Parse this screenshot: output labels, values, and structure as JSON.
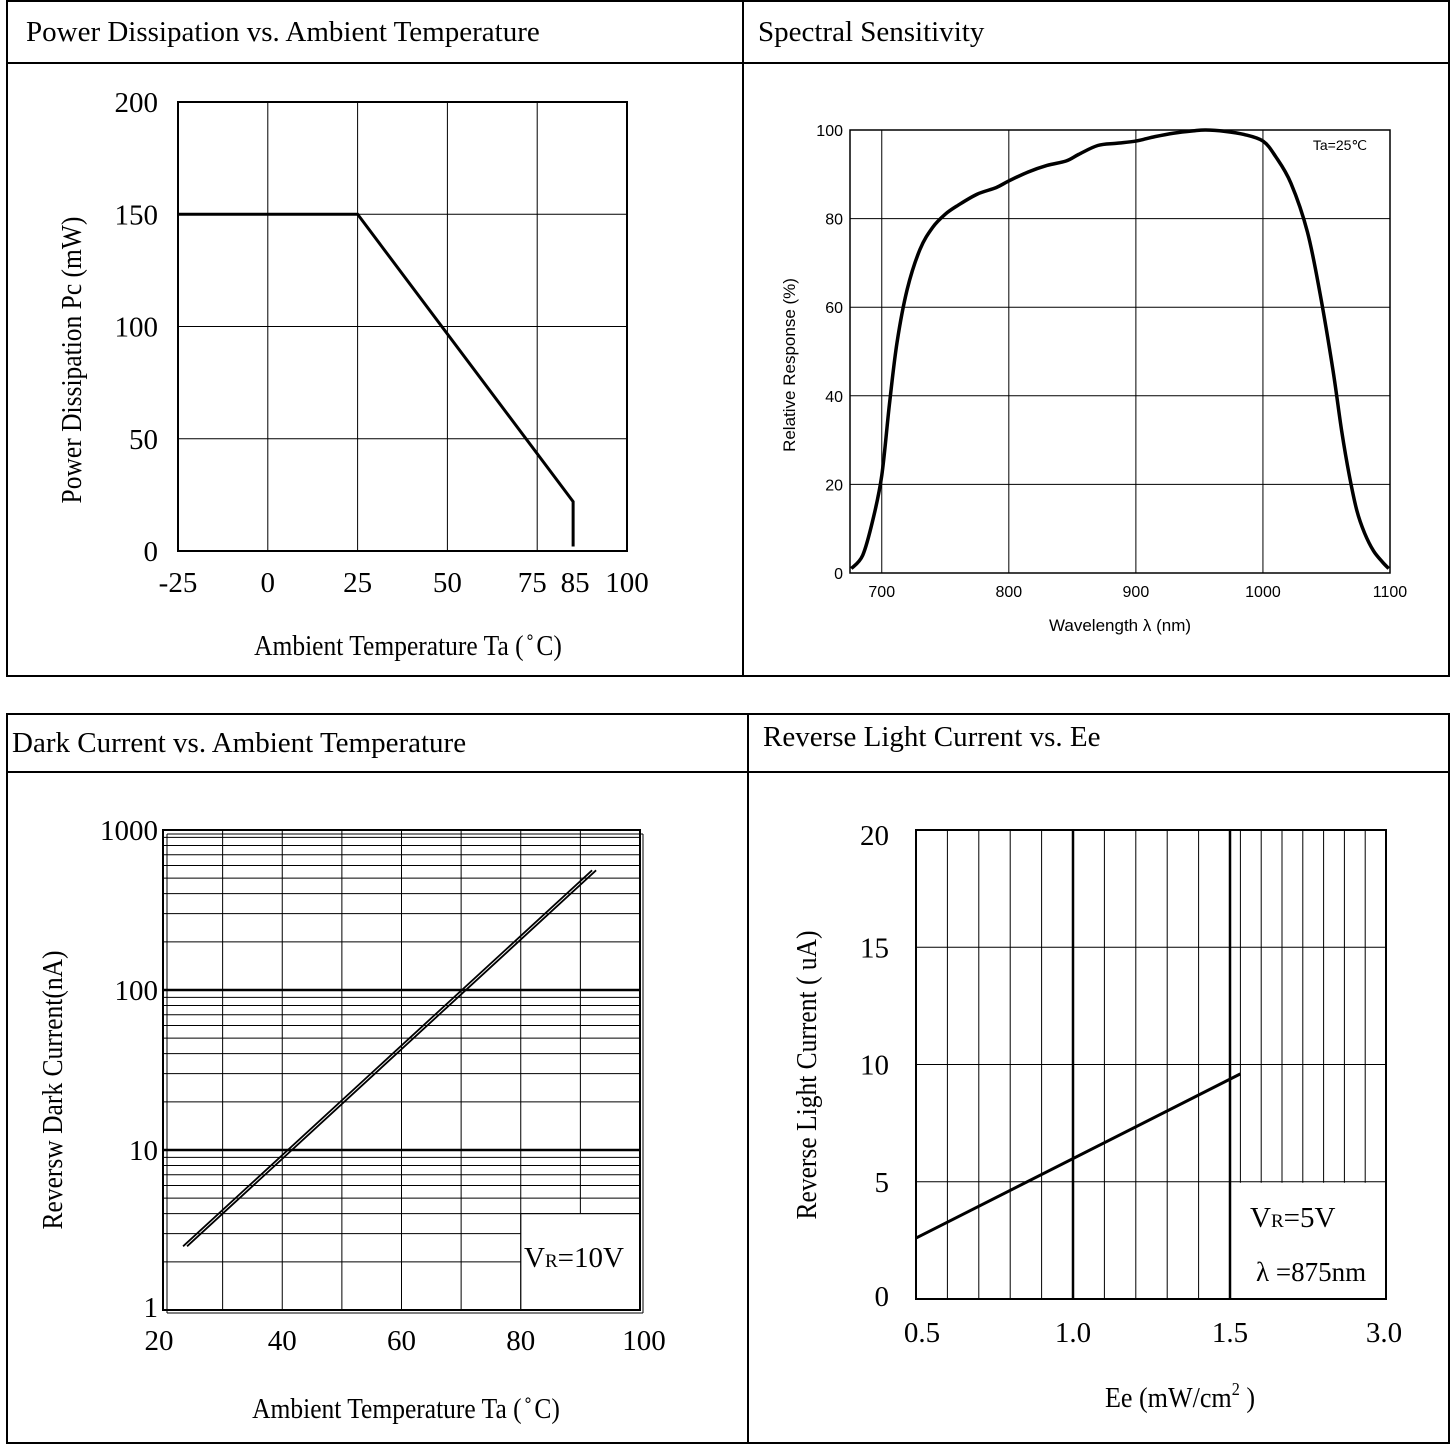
{
  "titles": {
    "power": "Power Dissipation vs. Ambient Temperature",
    "spectral": "Spectral Sensitivity",
    "dark": "Dark Current vs. Ambient Temperature",
    "light": "Reverse Light Current vs. Ee"
  },
  "chart_data": [
    {
      "id": "power",
      "type": "line",
      "title": "Power Dissipation vs. Ambient Temperature",
      "xlabel": "Ambient Temperature Ta (  ̊  C)",
      "ylabel": "Power Dissipation Pc (mW)",
      "xlim": [
        -25,
        100
      ],
      "ylim": [
        0,
        200
      ],
      "xticks": [
        -25,
        0,
        25,
        50,
        75,
        85,
        100
      ],
      "xtick_labels": [
        "-25",
        "0",
        "25",
        "50",
        "75",
        "85",
        "100"
      ],
      "yticks": [
        0,
        50,
        100,
        150,
        200
      ],
      "ytick_labels": [
        "0",
        "50",
        "100",
        "150",
        "200"
      ],
      "grid": true,
      "series": [
        {
          "x": [
            -25,
            25,
            85,
            85
          ],
          "y": [
            150,
            150,
            22,
            2
          ]
        }
      ]
    },
    {
      "id": "spectral",
      "type": "line",
      "title": "Spectral Sensitivity",
      "xlabel": "Wavelength  λ  (nm)",
      "ylabel": "Relative Response (%)",
      "xlim": [
        675,
        1100
      ],
      "ylim": [
        0,
        100
      ],
      "xticks": [
        700,
        800,
        900,
        1000,
        1100
      ],
      "xtick_labels": [
        "700",
        "800",
        "900",
        "1000",
        "1100"
      ],
      "yticks": [
        0,
        20,
        40,
        60,
        80,
        100
      ],
      "ytick_labels": [
        "0",
        "20",
        "40",
        "60",
        "80",
        "100"
      ],
      "grid": true,
      "annotation": "Ta=25℃",
      "series": [
        {
          "x": [
            676,
            685,
            693,
            700,
            706,
            712,
            720,
            730,
            740,
            750,
            760,
            775,
            790,
            800,
            815,
            830,
            845,
            855,
            870,
            885,
            900,
            915,
            930,
            945,
            955,
            970,
            985,
            1000,
            1010,
            1022,
            1035,
            1045,
            1055,
            1062,
            1068,
            1074,
            1080,
            1087,
            1094,
            1099
          ],
          "y": [
            1,
            4,
            12,
            22,
            38,
            52,
            64,
            73,
            78,
            81,
            83,
            85.5,
            87,
            88.5,
            90.5,
            92,
            93,
            94.5,
            96.5,
            97,
            97.5,
            98.5,
            99.3,
            99.8,
            100,
            99.7,
            99,
            97.5,
            94,
            88,
            77,
            63,
            46,
            32,
            22,
            14,
            9,
            5,
            2.5,
            1
          ]
        }
      ]
    },
    {
      "id": "dark",
      "type": "line",
      "title": "Dark Current vs. Ambient Temperature",
      "xlabel": "Ambient Temperature Ta (  ̊  C)",
      "ylabel": "Reversw Dark Current(nA)",
      "xlim": [
        20,
        100
      ],
      "ylim": [
        1,
        1000
      ],
      "yscale": "log",
      "xticks": [
        20,
        40,
        60,
        80,
        100
      ],
      "xtick_labels": [
        "20",
        "40",
        "60",
        "80",
        "100"
      ],
      "yticks": [
        1,
        10,
        100,
        1000
      ],
      "ytick_labels": [
        "1",
        "10",
        "100",
        "1000"
      ],
      "grid": true,
      "annotation": {
        "main": "V",
        "sub": "R",
        "rest": "=10V"
      },
      "series": [
        {
          "x": [
            23.7,
            92.3
          ],
          "y": [
            2.5,
            560
          ]
        }
      ]
    },
    {
      "id": "light",
      "type": "line",
      "title": "Reverse Light Current vs. Ee",
      "xlabel": {
        "main": "Ee  (mW/cm",
        "sup": "2",
        "end": "  )"
      },
      "ylabel": "Reverse Light Current ( uA)",
      "xtick_labels": [
        "0.5",
        "1.0",
        "1.5",
        "3.0"
      ],
      "xticks": [
        0.5,
        1.0,
        1.5,
        3.0
      ],
      "ylim": [
        0,
        20
      ],
      "yticks": [
        0,
        5,
        10,
        15,
        20
      ],
      "ytick_labels": [
        "0",
        "5",
        "10",
        "15",
        "20"
      ],
      "grid": true,
      "annotation": {
        "main": "V",
        "sub": "R",
        "rest": "=5V",
        "line2": "λ =875nm"
      },
      "series": [
        {
          "x": [
            0.5,
            1.6
          ],
          "y": [
            2.6,
            9.6
          ]
        }
      ]
    }
  ]
}
